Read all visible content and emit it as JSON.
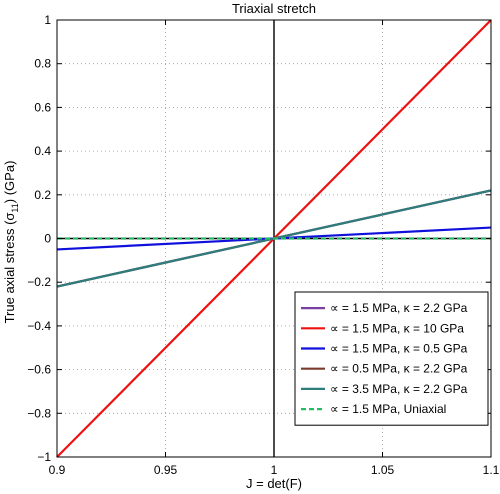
{
  "chart_data": {
    "type": "line",
    "title": "Triaxial stretch",
    "xlabel": "J = det(F)",
    "ylabel": "True axial stress (σ11) (GPa)",
    "ylabel_main": "True axial stress (σ",
    "ylabel_sub": "11",
    "ylabel_tail": ") (GPa)",
    "xlim": [
      0.9,
      1.1
    ],
    "ylim": [
      -1,
      1
    ],
    "xticks": [
      0.9,
      0.95,
      1,
      1.05,
      1.1
    ],
    "xtick_labels": [
      "0.9",
      "0.95",
      "1",
      "1.05",
      "1.1"
    ],
    "yticks": [
      -1,
      -0.8,
      -0.6,
      -0.4,
      -0.2,
      0,
      0.2,
      0.4,
      0.6,
      0.8,
      1
    ],
    "ytick_labels": [
      "−1",
      "−0.8",
      "−0.6",
      "−0.4",
      "−0.2",
      "0",
      "0.2",
      "0.4",
      "0.6",
      "0.8",
      "1"
    ],
    "grid": true,
    "legend_position": "bottom-right",
    "series": [
      {
        "name": "∝ = 1.5 MPa, κ = 2.2 GPa",
        "color": "#7a3fa0",
        "dash": false,
        "x": [
          0.9,
          1.1
        ],
        "y": [
          -0.22,
          0.22
        ]
      },
      {
        "name": "∝ = 1.5 MPa, κ = 10 GPa",
        "color": "#ee1111",
        "dash": false,
        "x": [
          0.9,
          1.1
        ],
        "y": [
          -1.0,
          1.0
        ]
      },
      {
        "name": "∝ = 1.5 MPa, κ = 0.5 GPa",
        "color": "#1010dd",
        "dash": false,
        "x": [
          0.9,
          1.1
        ],
        "y": [
          -0.05,
          0.05
        ]
      },
      {
        "name": "∝ = 0.5 MPa, κ = 2.2 GPa",
        "color": "#7a3b2e",
        "dash": false,
        "x": [
          0.9,
          1.1
        ],
        "y": [
          -0.22,
          0.22
        ]
      },
      {
        "name": "∝ = 3.5 MPa, κ = 2.2 GPa",
        "color": "#2e7d7d",
        "dash": false,
        "x": [
          0.9,
          1.1
        ],
        "y": [
          -0.22,
          0.22
        ]
      },
      {
        "name": "∝ = 1.5 MPa, Uniaxial",
        "color": "#22bb66",
        "dash": true,
        "x": [
          0.9,
          1.1
        ],
        "y": [
          0.0,
          0.0
        ]
      }
    ],
    "reference_lines": {
      "x": 1,
      "y": 0
    }
  }
}
